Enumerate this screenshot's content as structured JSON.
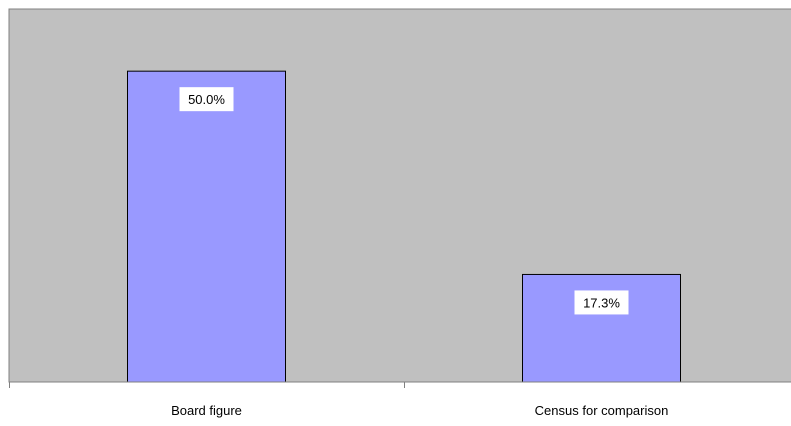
{
  "chart_data": {
    "type": "bar",
    "categories": [
      "Board figure",
      "Census for comparison"
    ],
    "values": [
      50.0,
      17.3
    ],
    "data_labels": [
      "50.0%",
      "17.3%"
    ],
    "title": "",
    "xlabel": "",
    "ylabel": "",
    "ylim": [
      0,
      60
    ],
    "grid": false,
    "legend": "none",
    "colors": {
      "plot_background": "#c0c0c0",
      "bar_fill": "#9999ff",
      "bar_stroke": "#000000",
      "axis": "#808080",
      "label_background": "#ffffff"
    }
  }
}
